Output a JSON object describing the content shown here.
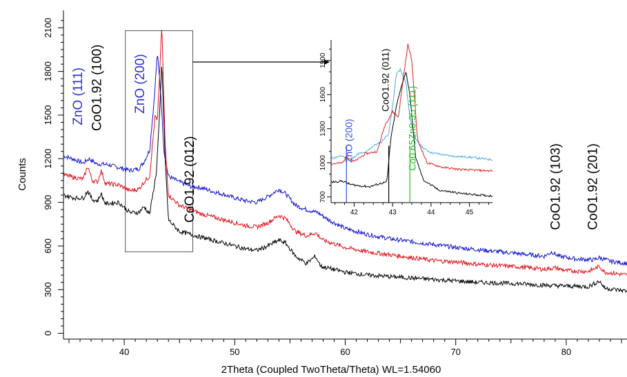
{
  "chart_data": {
    "type": "line",
    "xlabel": "2Theta (Coupled TwoTheta/Theta) WL=1.54060",
    "ylabel": "Counts",
    "xlim": [
      34.5,
      85.5
    ],
    "ylim": [
      -40,
      2220
    ],
    "x_ticks": [
      "40",
      "50",
      "60",
      "70",
      "80"
    ],
    "y_ticks": [
      "0",
      "300",
      "600",
      "900",
      "1200",
      "1500",
      "1800",
      "2100"
    ],
    "x_tick_values": [
      40,
      50,
      60,
      70,
      80
    ],
    "y_tick_values": [
      0,
      300,
      600,
      900,
      1200,
      1500,
      1800,
      2100
    ],
    "grid": false,
    "series_colors": [
      "#1010d0",
      "#e0101a",
      "#000000"
    ],
    "series": [
      {
        "color": "#1010d0",
        "points": [
          [
            34.5,
            1220
          ],
          [
            35.5,
            1195
          ],
          [
            36.3,
            1170
          ],
          [
            36.8,
            1200
          ],
          [
            37.5,
            1165
          ],
          [
            38.5,
            1160
          ],
          [
            39.5,
            1140
          ],
          [
            40.5,
            1120
          ],
          [
            41.3,
            1130
          ],
          [
            41.8,
            1180
          ],
          [
            42.3,
            1260
          ],
          [
            42.7,
            1600
          ],
          [
            43.0,
            1930
          ],
          [
            43.3,
            1650
          ],
          [
            43.6,
            1250
          ],
          [
            44.0,
            1080
          ],
          [
            45,
            1040
          ],
          [
            46,
            1010
          ],
          [
            47,
            1000
          ],
          [
            48,
            975
          ],
          [
            49,
            955
          ],
          [
            50,
            930
          ],
          [
            51,
            910
          ],
          [
            52,
            900
          ],
          [
            53,
            940
          ],
          [
            54,
            990
          ],
          [
            54.6,
            960
          ],
          [
            55.5,
            880
          ],
          [
            56.5,
            850
          ],
          [
            57.5,
            830
          ],
          [
            58.5,
            780
          ],
          [
            60,
            720
          ],
          [
            62,
            680
          ],
          [
            64,
            650
          ],
          [
            66,
            630
          ],
          [
            68,
            610
          ],
          [
            70,
            590
          ],
          [
            72,
            575
          ],
          [
            74,
            560
          ],
          [
            76,
            545
          ],
          [
            78,
            530
          ],
          [
            78.7,
            560
          ],
          [
            79.3,
            530
          ],
          [
            81,
            510
          ],
          [
            82.5,
            505
          ],
          [
            83,
            520
          ],
          [
            84,
            495
          ],
          [
            85.5,
            480
          ]
        ]
      },
      {
        "color": "#e0101a",
        "points": [
          [
            34.5,
            1090
          ],
          [
            35.5,
            1070
          ],
          [
            36.3,
            1060
          ],
          [
            36.7,
            1150
          ],
          [
            37.1,
            1050
          ],
          [
            37.6,
            1040
          ],
          [
            37.9,
            1120
          ],
          [
            38.3,
            1030
          ],
          [
            39.5,
            1020
          ],
          [
            40.5,
            980
          ],
          [
            41.3,
            990
          ],
          [
            41.8,
            1040
          ],
          [
            42.3,
            1080
          ],
          [
            42.8,
            1500
          ],
          [
            43.0,
            1450
          ],
          [
            43.4,
            2120
          ],
          [
            43.7,
            1300
          ],
          [
            44.0,
            950
          ],
          [
            45,
            880
          ],
          [
            46,
            850
          ],
          [
            47,
            820
          ],
          [
            48,
            800
          ],
          [
            49,
            780
          ],
          [
            50,
            760
          ],
          [
            51,
            740
          ],
          [
            52,
            730
          ],
          [
            53,
            760
          ],
          [
            54,
            810
          ],
          [
            54.6,
            790
          ],
          [
            55.5,
            700
          ],
          [
            56.5,
            670
          ],
          [
            57.3,
            690
          ],
          [
            58,
            640
          ],
          [
            60,
            590
          ],
          [
            62,
            560
          ],
          [
            64,
            540
          ],
          [
            66,
            520
          ],
          [
            68,
            500
          ],
          [
            70,
            490
          ],
          [
            72,
            475
          ],
          [
            74,
            465
          ],
          [
            76,
            455
          ],
          [
            78,
            440
          ],
          [
            79,
            450
          ],
          [
            80,
            430
          ],
          [
            82,
            425
          ],
          [
            83,
            460
          ],
          [
            83.5,
            420
          ],
          [
            85.5,
            400
          ]
        ]
      },
      {
        "color": "#000000",
        "points": [
          [
            34.5,
            950
          ],
          [
            35.5,
            930
          ],
          [
            36.3,
            930
          ],
          [
            36.7,
            980
          ],
          [
            37.1,
            920
          ],
          [
            37.6,
            910
          ],
          [
            37.9,
            960
          ],
          [
            38.3,
            890
          ],
          [
            39.5,
            900
          ],
          [
            40.5,
            830
          ],
          [
            41.3,
            830
          ],
          [
            41.8,
            870
          ],
          [
            42.3,
            820
          ],
          [
            42.9,
            1100
          ],
          [
            43.2,
            1500
          ],
          [
            43.4,
            1860
          ],
          [
            43.7,
            1200
          ],
          [
            44.0,
            780
          ],
          [
            45,
            700
          ],
          [
            46,
            680
          ],
          [
            47,
            660
          ],
          [
            48,
            640
          ],
          [
            49,
            620
          ],
          [
            50,
            600
          ],
          [
            51,
            580
          ],
          [
            52,
            570
          ],
          [
            53,
            600
          ],
          [
            54,
            640
          ],
          [
            54.6,
            620
          ],
          [
            55.5,
            530
          ],
          [
            56.5,
            480
          ],
          [
            57.3,
            530
          ],
          [
            57.8,
            460
          ],
          [
            60,
            420
          ],
          [
            62,
            400
          ],
          [
            64,
            390
          ],
          [
            66,
            380
          ],
          [
            68,
            370
          ],
          [
            70,
            360
          ],
          [
            72,
            350
          ],
          [
            74,
            345
          ],
          [
            76,
            340
          ],
          [
            78,
            330
          ],
          [
            80,
            325
          ],
          [
            82,
            320
          ],
          [
            83,
            360
          ],
          [
            83.5,
            310
          ],
          [
            85.5,
            290
          ]
        ]
      }
    ],
    "annotations": [
      {
        "text": "ZnO (111)",
        "color": "#3030d0",
        "x": 36.2,
        "y": 1430
      },
      {
        "text": "CoO1.92 (100)",
        "color": "#000000",
        "x": 37.9,
        "y": 1390
      },
      {
        "text": "ZnO (200)",
        "color": "#3030d0",
        "x": 41.8,
        "y": 1510
      },
      {
        "text": "CoO1.92 (012)",
        "color": "#000000",
        "x": 46.3,
        "y": 760
      },
      {
        "text": "CoO1.92 (103)",
        "color": "#000000",
        "x": 79.4,
        "y": 710
      },
      {
        "text": "CoO1.92 (201)",
        "color": "#000000",
        "x": 82.8,
        "y": 710
      }
    ],
    "zoom_box": {
      "x_range": [
        40.1,
        46.2
      ],
      "y_range": [
        560,
        2080
      ]
    },
    "inset": {
      "xlim": [
        41.4,
        45.6
      ],
      "ylim": [
        650,
        2080
      ],
      "x_ticks": [
        "42",
        "43",
        "44",
        "45"
      ],
      "y_ticks": [
        "700",
        "1000",
        "1300",
        "1600",
        "1900"
      ],
      "x_tick_values": [
        42,
        43,
        44,
        45
      ],
      "y_tick_values": [
        700,
        1000,
        1300,
        1600,
        1900
      ],
      "series": [
        {
          "color": "#48a8e8",
          "points": [
            [
              41.4,
              1040
            ],
            [
              41.7,
              1060
            ],
            [
              41.9,
              1020
            ],
            [
              42.1,
              1080
            ],
            [
              42.3,
              1090
            ],
            [
              42.5,
              1150
            ],
            [
              42.7,
              1180
            ],
            [
              42.9,
              1260
            ],
            [
              43.0,
              1500
            ],
            [
              43.1,
              1780
            ],
            [
              43.2,
              1820
            ],
            [
              43.35,
              1700
            ],
            [
              43.45,
              1400
            ],
            [
              43.6,
              1200
            ],
            [
              43.8,
              1130
            ],
            [
              44.0,
              1090
            ],
            [
              44.5,
              1060
            ],
            [
              45,
              1050
            ],
            [
              45.5,
              1030
            ]
          ]
        },
        {
          "color": "#e02020",
          "points": [
            [
              41.4,
              990
            ],
            [
              41.7,
              1000
            ],
            [
              41.8,
              1060
            ],
            [
              42.0,
              1010
            ],
            [
              42.3,
              1080
            ],
            [
              42.6,
              1100
            ],
            [
              42.8,
              1330
            ],
            [
              43.0,
              1450
            ],
            [
              43.15,
              1400
            ],
            [
              43.3,
              1800
            ],
            [
              43.4,
              2040
            ],
            [
              43.5,
              1900
            ],
            [
              43.65,
              1200
            ],
            [
              43.9,
              1000
            ],
            [
              44.3,
              960
            ],
            [
              44.8,
              940
            ],
            [
              45.5,
              930
            ]
          ]
        },
        {
          "color": "#000000",
          "points": [
            [
              41.4,
              830
            ],
            [
              41.7,
              840
            ],
            [
              41.9,
              810
            ],
            [
              42.1,
              800
            ],
            [
              42.4,
              790
            ],
            [
              42.7,
              820
            ],
            [
              42.85,
              830
            ],
            [
              42.95,
              1200
            ],
            [
              43.1,
              1500
            ],
            [
              43.25,
              1700
            ],
            [
              43.35,
              1800
            ],
            [
              43.45,
              1600
            ],
            [
              43.6,
              1050
            ],
            [
              43.8,
              850
            ],
            [
              44.2,
              760
            ],
            [
              44.8,
              730
            ],
            [
              45.5,
              710
            ]
          ]
        }
      ],
      "ref_lines": [
        {
          "x": 41.8,
          "color": "#3050e0"
        },
        {
          "x": 42.9,
          "color": "#000000"
        },
        {
          "x": 43.45,
          "color": "#20c020"
        }
      ],
      "annotations": [
        {
          "text": "ZnO (200)",
          "color": "#3050e0",
          "x": 41.95,
          "y": 1000
        },
        {
          "text": "CoO1.92 (011)",
          "color": "#000000",
          "x": 42.9,
          "y": 1450
        },
        {
          "text": "Co0.65Zn0.35 (111)",
          "color": "#20c020",
          "x": 43.6,
          "y": 930
        }
      ]
    }
  }
}
